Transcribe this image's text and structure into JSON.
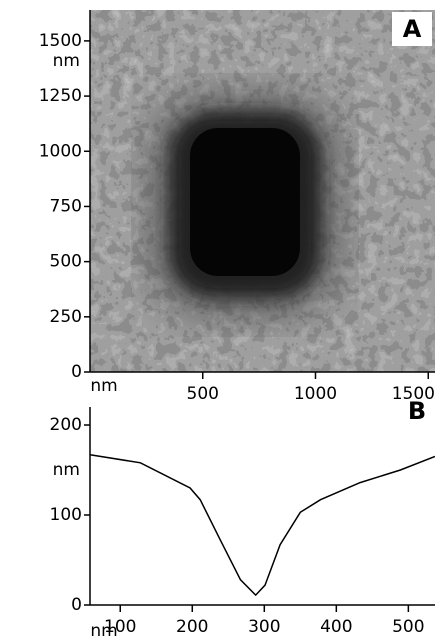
{
  "chart_data": [
    {
      "type": "image",
      "label": "A",
      "xlabel": "nm",
      "ylabel": "nm",
      "xlim": [
        0,
        1530
      ],
      "ylim": [
        0,
        1640
      ],
      "xticks": [
        500,
        1000,
        1500
      ],
      "yticks": [
        0,
        250,
        500,
        750,
        1000,
        1250,
        1500
      ]
    },
    {
      "type": "line",
      "label": "B",
      "xlabel": "nm",
      "ylabel": "nm",
      "x": [
        58,
        128,
        197,
        211,
        239,
        267,
        288,
        301,
        322,
        350,
        378,
        433,
        489,
        537
      ],
      "values": [
        167,
        158,
        130,
        117,
        72,
        28,
        11,
        22,
        67,
        103,
        117,
        136,
        150,
        165
      ],
      "color": "#000000",
      "xlim": [
        58,
        537
      ],
      "ylim": [
        0,
        220
      ],
      "xticks": [
        100,
        200,
        300,
        400,
        500
      ],
      "yticks": [
        0,
        100,
        200
      ]
    }
  ]
}
